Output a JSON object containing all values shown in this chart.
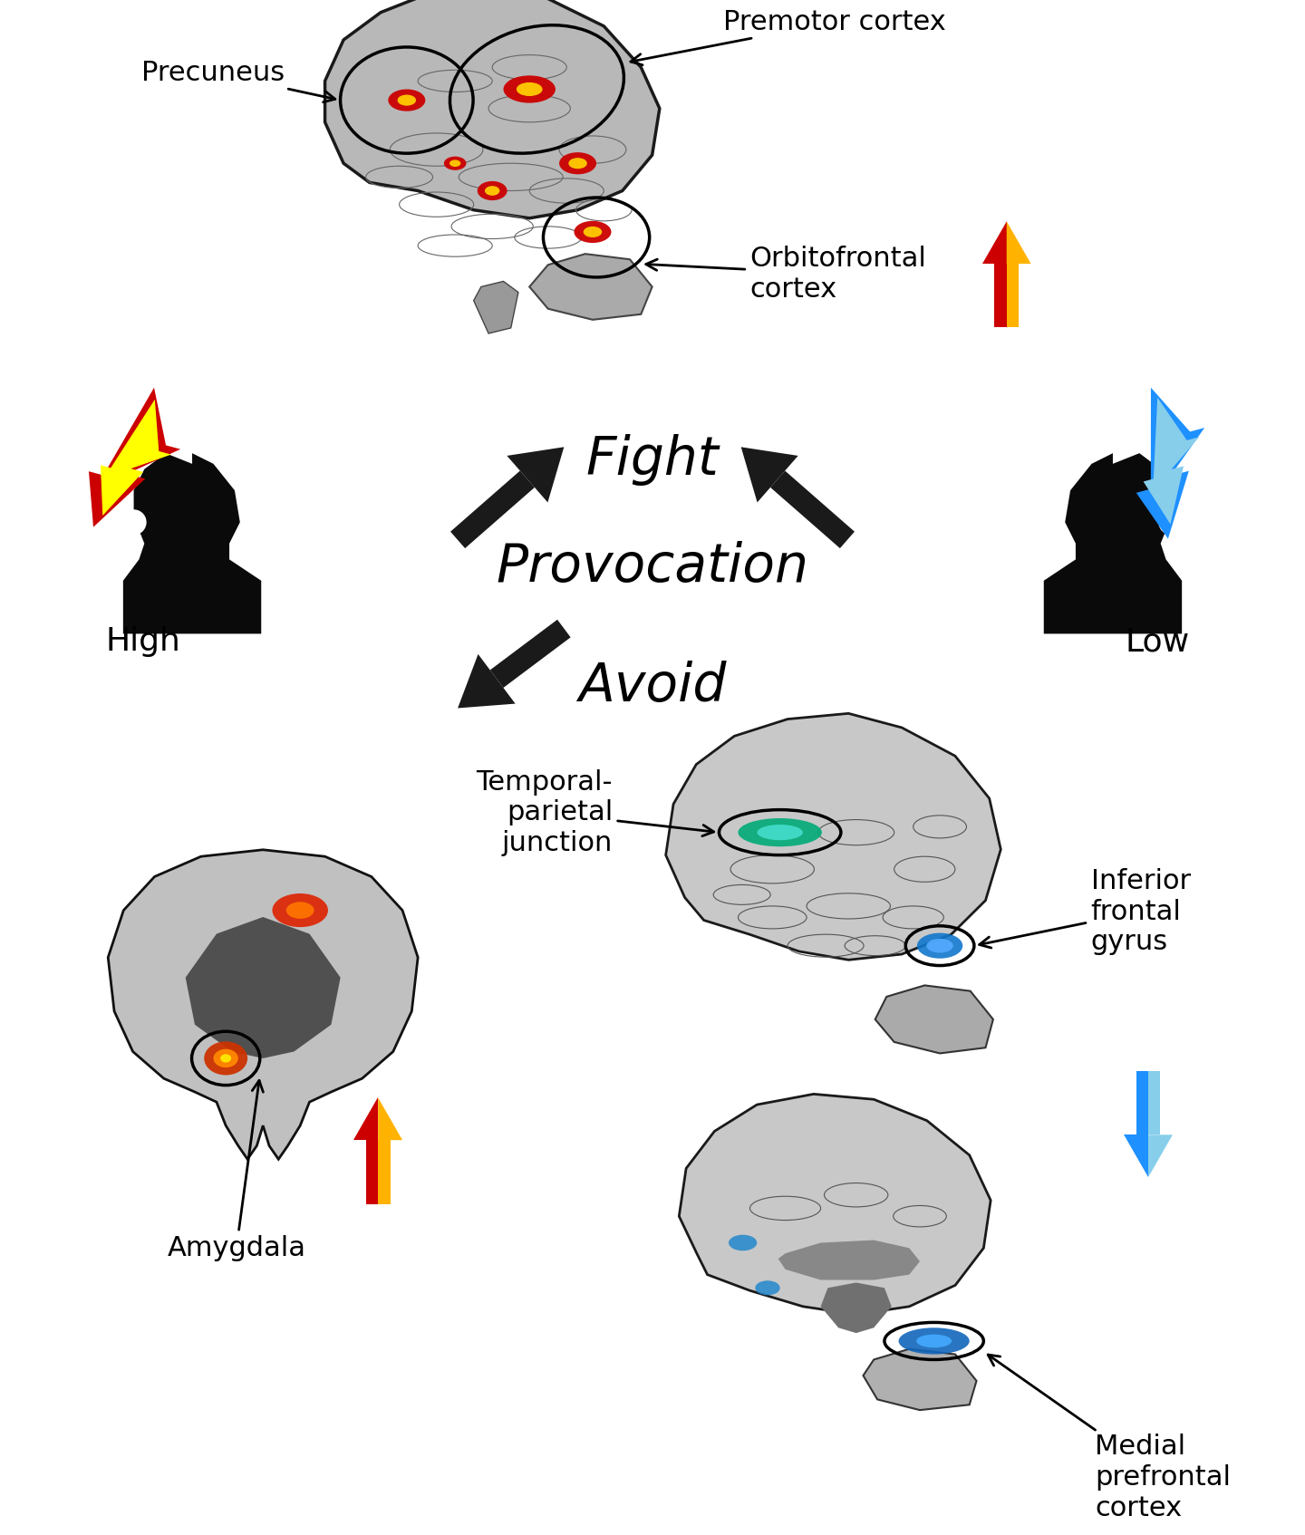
{
  "background_color": "#ffffff",
  "fight_text": "Fight",
  "provocation_text": "Provocation",
  "avoid_text": "Avoid",
  "high_text": "High",
  "low_text": "Low",
  "precuneus_text": "Precuneus",
  "premotor_text": "Premotor cortex",
  "orbitofrontal_text": "Orbitofrontal\ncortex",
  "temporal_parietal_text": "Temporal-\nparietal\njunction",
  "inferior_frontal_text": "Inferior\nfrontal\ngyrus",
  "medial_prefrontal_text": "Medial\nprefrontal\ncortex",
  "amygdala_text": "Amygdala",
  "fight_fontsize": 42,
  "provocation_fontsize": 42,
  "avoid_fontsize": 42,
  "label_fontsize": 22,
  "high_low_fontsize": 26
}
